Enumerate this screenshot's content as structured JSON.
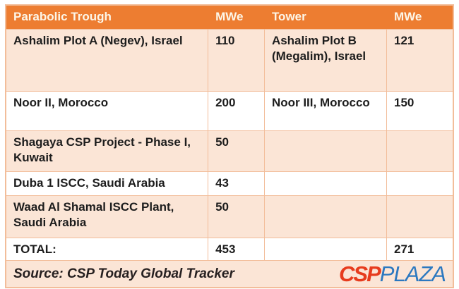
{
  "chart_data": {
    "type": "table",
    "columns": [
      "Parabolic Trough",
      "MWe",
      "Tower",
      "MWe"
    ],
    "rows": [
      [
        "Ashalim Plot A (Negev), Israel",
        "110",
        "Ashalim Plot B (Megalim), Israel",
        "121"
      ],
      [
        "Noor II, Morocco",
        "200",
        "Noor III, Morocco",
        "150"
      ],
      [
        "Shagaya CSP Project - Phase I, Kuwait",
        "50",
        "",
        ""
      ],
      [
        "Duba 1 ISCC, Saudi Arabia",
        "43",
        "",
        ""
      ],
      [
        "Waad Al Shamal ISCC Plant, Saudi Arabia",
        "50",
        "",
        ""
      ],
      [
        "TOTAL:",
        "453",
        "",
        "271"
      ]
    ],
    "title": "",
    "source": "Source: CSP Today Global Tracker"
  },
  "footer": {
    "source_label": "Source: CSP Today Global Tracker",
    "logo": {
      "part1": "CSP",
      "part2": "PLAZA",
      "part1_color": "#e73c1e",
      "part2_color": "#2b78c0"
    }
  },
  "colors": {
    "header_bg": "#ed7d31",
    "header_text": "#fdf6e8",
    "row_alt_bg": "#fbe5d6",
    "row_plain_bg": "#ffffff",
    "border": "#f2bd9a",
    "body_text": "#1d1d1d"
  }
}
